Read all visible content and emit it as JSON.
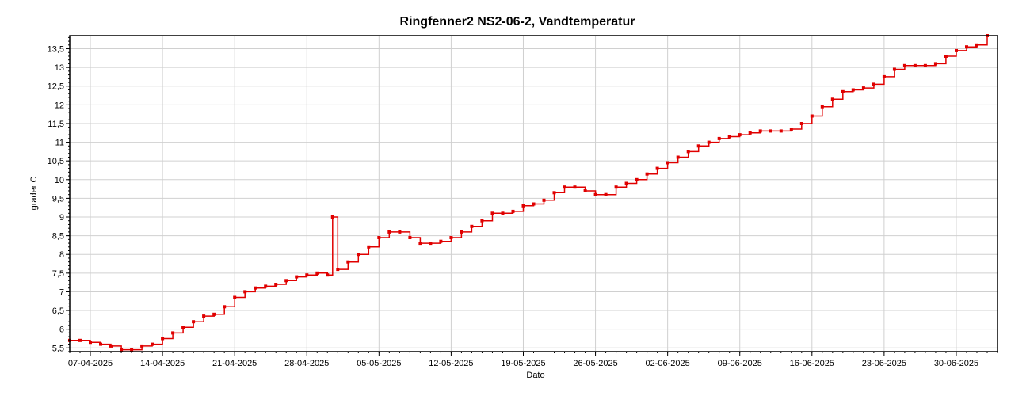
{
  "chart_data": {
    "type": "line",
    "title": "Ringfenner2 NS2-06-2, Vandtemperatur",
    "xlabel": "Dato",
    "ylabel": "grader C",
    "x_tick_labels": [
      "07-04-2025",
      "14-04-2025",
      "21-04-2025",
      "28-04-2025",
      "05-05-2025",
      "12-05-2025",
      "19-05-2025",
      "26-05-2025",
      "02-06-2025",
      "09-06-2025",
      "16-06-2025",
      "23-06-2025",
      "30-06-2025"
    ],
    "y_tick_labels": [
      "5,5",
      "6",
      "6,5",
      "7",
      "7,5",
      "8",
      "8,5",
      "9",
      "9,5",
      "10",
      "10,5",
      "11",
      "11,5",
      "12",
      "12,5",
      "13",
      "13,5"
    ],
    "xlim": [
      "2025-04-05",
      "2025-07-04"
    ],
    "ylim": [
      5.4,
      13.85
    ],
    "grid": true,
    "series": [
      {
        "color": "#e00000",
        "points": [
          [
            "2025-04-05",
            5.7
          ],
          [
            "2025-04-06",
            5.7
          ],
          [
            "2025-04-07",
            5.65
          ],
          [
            "2025-04-08",
            5.6
          ],
          [
            "2025-04-09",
            5.55
          ],
          [
            "2025-04-10",
            5.45
          ],
          [
            "2025-04-11",
            5.45
          ],
          [
            "2025-04-12",
            5.55
          ],
          [
            "2025-04-13",
            5.6
          ],
          [
            "2025-04-14",
            5.75
          ],
          [
            "2025-04-15",
            5.9
          ],
          [
            "2025-04-16",
            6.05
          ],
          [
            "2025-04-17",
            6.2
          ],
          [
            "2025-04-18",
            6.35
          ],
          [
            "2025-04-19",
            6.4
          ],
          [
            "2025-04-20",
            6.6
          ],
          [
            "2025-04-21",
            6.85
          ],
          [
            "2025-04-22",
            7.0
          ],
          [
            "2025-04-23",
            7.1
          ],
          [
            "2025-04-24",
            7.15
          ],
          [
            "2025-04-25",
            7.2
          ],
          [
            "2025-04-26",
            7.3
          ],
          [
            "2025-04-27",
            7.4
          ],
          [
            "2025-04-28",
            7.45
          ],
          [
            "2025-04-29",
            7.5
          ],
          [
            "2025-04-30",
            7.45
          ],
          [
            "2025-04-30 12:00",
            9.0
          ],
          [
            "2025-05-01",
            7.6
          ],
          [
            "2025-05-02",
            7.8
          ],
          [
            "2025-05-03",
            8.0
          ],
          [
            "2025-05-04",
            8.2
          ],
          [
            "2025-05-05",
            8.45
          ],
          [
            "2025-05-06",
            8.6
          ],
          [
            "2025-05-07",
            8.6
          ],
          [
            "2025-05-08",
            8.45
          ],
          [
            "2025-05-09",
            8.3
          ],
          [
            "2025-05-10",
            8.3
          ],
          [
            "2025-05-11",
            8.35
          ],
          [
            "2025-05-12",
            8.45
          ],
          [
            "2025-05-13",
            8.6
          ],
          [
            "2025-05-14",
            8.75
          ],
          [
            "2025-05-15",
            8.9
          ],
          [
            "2025-05-16",
            9.1
          ],
          [
            "2025-05-17",
            9.1
          ],
          [
            "2025-05-18",
            9.15
          ],
          [
            "2025-05-19",
            9.3
          ],
          [
            "2025-05-20",
            9.35
          ],
          [
            "2025-05-21",
            9.45
          ],
          [
            "2025-05-22",
            9.65
          ],
          [
            "2025-05-23",
            9.8
          ],
          [
            "2025-05-24",
            9.8
          ],
          [
            "2025-05-25",
            9.7
          ],
          [
            "2025-05-26",
            9.6
          ],
          [
            "2025-05-27",
            9.6
          ],
          [
            "2025-05-28",
            9.8
          ],
          [
            "2025-05-29",
            9.9
          ],
          [
            "2025-05-30",
            10.0
          ],
          [
            "2025-05-31",
            10.15
          ],
          [
            "2025-06-01",
            10.3
          ],
          [
            "2025-06-02",
            10.45
          ],
          [
            "2025-06-03",
            10.6
          ],
          [
            "2025-06-04",
            10.75
          ],
          [
            "2025-06-05",
            10.9
          ],
          [
            "2025-06-06",
            11.0
          ],
          [
            "2025-06-07",
            11.1
          ],
          [
            "2025-06-08",
            11.15
          ],
          [
            "2025-06-09",
            11.2
          ],
          [
            "2025-06-10",
            11.25
          ],
          [
            "2025-06-11",
            11.3
          ],
          [
            "2025-06-12",
            11.3
          ],
          [
            "2025-06-13",
            11.3
          ],
          [
            "2025-06-14",
            11.35
          ],
          [
            "2025-06-15",
            11.5
          ],
          [
            "2025-06-16",
            11.7
          ],
          [
            "2025-06-17",
            11.95
          ],
          [
            "2025-06-18",
            12.15
          ],
          [
            "2025-06-19",
            12.35
          ],
          [
            "2025-06-20",
            12.4
          ],
          [
            "2025-06-21",
            12.45
          ],
          [
            "2025-06-22",
            12.55
          ],
          [
            "2025-06-23",
            12.75
          ],
          [
            "2025-06-24",
            12.95
          ],
          [
            "2025-06-25",
            13.05
          ],
          [
            "2025-06-26",
            13.05
          ],
          [
            "2025-06-27",
            13.05
          ],
          [
            "2025-06-28",
            13.1
          ],
          [
            "2025-06-29",
            13.3
          ],
          [
            "2025-06-30",
            13.45
          ],
          [
            "2025-07-01",
            13.55
          ],
          [
            "2025-07-02",
            13.6
          ],
          [
            "2025-07-03",
            13.85
          ]
        ]
      }
    ]
  }
}
